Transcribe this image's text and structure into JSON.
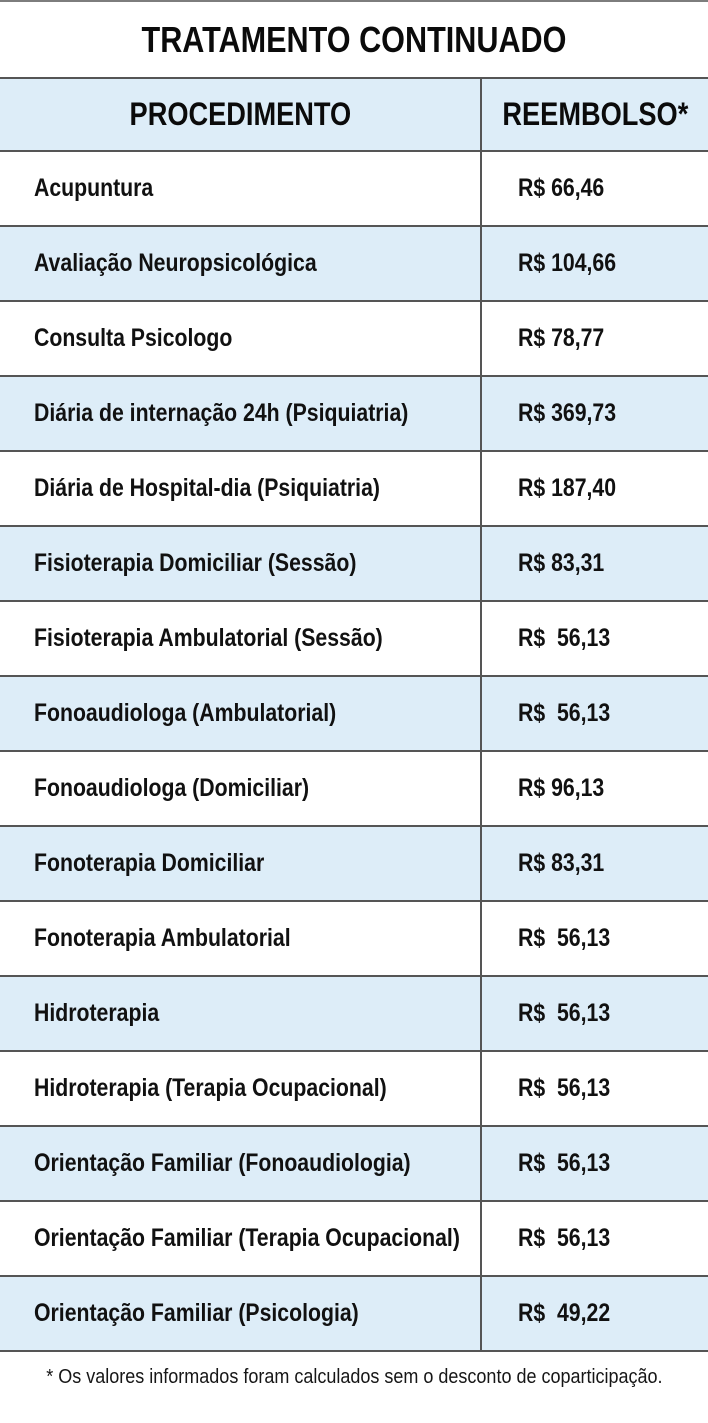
{
  "title": "TRATAMENTO CONTINUADO",
  "table": {
    "columns": [
      "PROCEDIMENTO",
      "REEMBOLSO*"
    ],
    "rows": [
      {
        "procedimento": "Acupuntura",
        "reembolso": "R$ 66,46"
      },
      {
        "procedimento": "Avaliação Neuropsicológica",
        "reembolso": "R$ 104,66"
      },
      {
        "procedimento": "Consulta Psicologo",
        "reembolso": "R$ 78,77"
      },
      {
        "procedimento": "Diária de internação 24h (Psiquiatria)",
        "reembolso": "R$ 369,73"
      },
      {
        "procedimento": "Diária de Hospital-dia (Psiquiatria)",
        "reembolso": "R$ 187,40"
      },
      {
        "procedimento": "Fisioterapia Domiciliar (Sessão)",
        "reembolso": "R$ 83,31"
      },
      {
        "procedimento": "Fisioterapia Ambulatorial (Sessão)",
        "reembolso": "R$  56,13"
      },
      {
        "procedimento": "Fonoaudiologa (Ambulatorial)",
        "reembolso": "R$  56,13"
      },
      {
        "procedimento": "Fonoaudiologa (Domiciliar)",
        "reembolso": "R$ 96,13"
      },
      {
        "procedimento": "Fonoterapia Domiciliar",
        "reembolso": "R$ 83,31"
      },
      {
        "procedimento": "Fonoterapia Ambulatorial",
        "reembolso": "R$  56,13"
      },
      {
        "procedimento": "Hidroterapia",
        "reembolso": "R$  56,13"
      },
      {
        "procedimento": "Hidroterapia (Terapia Ocupacional)",
        "reembolso": "R$  56,13"
      },
      {
        "procedimento": "Orientação Familiar (Fonoaudiologia)",
        "reembolso": "R$  56,13"
      },
      {
        "procedimento": "Orientação Familiar (Terapia Ocupacional)",
        "reembolso": "R$  56,13"
      },
      {
        "procedimento": "Orientação Familiar (Psicologia)",
        "reembolso": "R$  49,22"
      }
    ]
  },
  "footnote": "* Os valores informados foram calculados sem o desconto de coparticipação.",
  "colors": {
    "header_bg": "#ddedf8",
    "row_alt_bg": "#ddedf8",
    "border": "#555555",
    "text": "#111111",
    "top_line": "#7d7d7d"
  }
}
